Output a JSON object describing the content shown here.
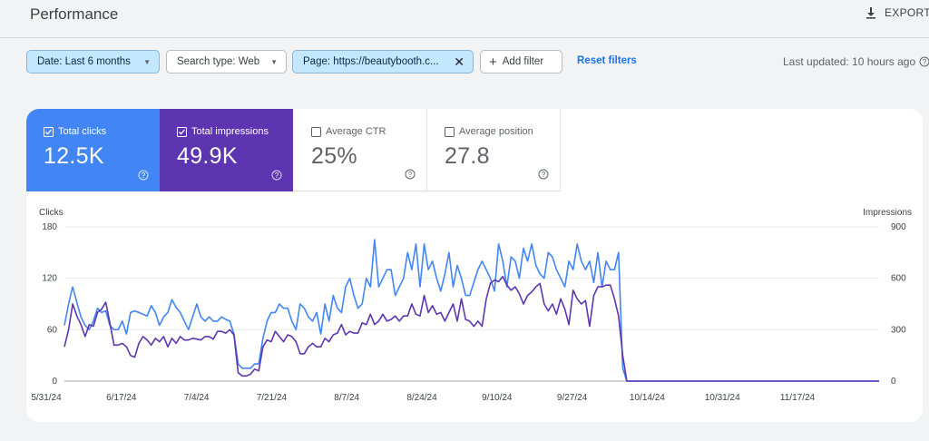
{
  "header": {
    "title": "Performance",
    "export_label": "EXPORT"
  },
  "filters": {
    "date": "Date: Last 6 months",
    "search_type": "Search type: Web",
    "page": "Page: https://beautybooth.c...",
    "add_filter": "Add filter",
    "reset": "Reset filters",
    "last_updated": "Last updated: 10 hours ago"
  },
  "metrics": [
    {
      "label": "Total clicks",
      "value": "12.5K",
      "checked": true,
      "color": "#4285f4"
    },
    {
      "label": "Total impressions",
      "value": "49.9K",
      "checked": true,
      "color": "#5e35b1"
    },
    {
      "label": "Average CTR",
      "value": "25%",
      "checked": false
    },
    {
      "label": "Average position",
      "value": "27.8",
      "checked": false
    }
  ],
  "chart_data": {
    "type": "line",
    "left_axis_label": "Clicks",
    "right_axis_label": "Impressions",
    "left_ylim": [
      0,
      180
    ],
    "right_ylim": [
      0,
      900
    ],
    "left_ticks": [
      "0",
      "60",
      "120",
      "180"
    ],
    "right_ticks": [
      "0",
      "300",
      "600",
      "900"
    ],
    "x_labels": [
      "5/31/24",
      "6/17/24",
      "7/4/24",
      "7/21/24",
      "8/7/24",
      "8/24/24",
      "9/10/24",
      "9/27/24",
      "10/14/24",
      "10/31/24",
      "11/17/24"
    ],
    "series": [
      {
        "name": "Clicks",
        "color": "#4285f4",
        "axis": "left",
        "values": [
          65,
          90,
          110,
          92,
          75,
          65,
          60,
          70,
          85,
          80,
          82,
          65,
          60,
          60,
          70,
          55,
          80,
          82,
          80,
          78,
          76,
          88,
          80,
          65,
          75,
          80,
          95,
          86,
          80,
          70,
          60,
          75,
          90,
          75,
          70,
          75,
          70,
          70,
          75,
          72,
          70,
          55,
          20,
          15,
          15,
          15,
          20,
          20,
          50,
          70,
          80,
          80,
          90,
          85,
          85,
          70,
          60,
          90,
          85,
          75,
          70,
          80,
          55,
          90,
          70,
          100,
          85,
          80,
          110,
          120,
          100,
          85,
          90,
          120,
          110,
          165,
          110,
          120,
          130,
          130,
          100,
          110,
          120,
          150,
          130,
          160,
          110,
          160,
          130,
          140,
          120,
          105,
          125,
          150,
          110,
          135,
          120,
          100,
          100,
          115,
          130,
          140,
          130,
          120,
          105,
          160,
          140,
          110,
          145,
          140,
          120,
          155,
          140,
          160,
          135,
          125,
          120,
          150,
          145,
          130,
          120,
          110,
          140,
          130,
          160,
          140,
          130,
          140,
          115,
          150,
          110,
          140,
          130,
          130,
          150,
          15,
          0,
          0,
          0,
          0,
          0,
          0,
          0,
          0,
          0,
          0,
          0,
          0,
          0,
          0,
          0,
          0,
          0,
          0,
          0,
          0,
          0,
          0,
          0,
          0,
          0,
          0,
          0,
          0,
          0,
          0,
          0,
          0,
          0,
          0,
          0,
          0,
          0,
          0,
          0,
          0,
          0,
          0,
          0,
          0,
          0,
          0,
          0,
          0,
          0,
          0,
          0,
          0,
          0,
          0,
          0,
          0,
          0,
          0,
          0,
          0,
          0,
          0
        ]
      },
      {
        "name": "Impressions",
        "color": "#5e35b1",
        "axis": "right",
        "values": [
          200,
          300,
          450,
          380,
          330,
          260,
          330,
          320,
          400,
          420,
          460,
          340,
          210,
          210,
          220,
          200,
          150,
          140,
          220,
          260,
          240,
          210,
          250,
          230,
          260,
          200,
          250,
          220,
          260,
          240,
          240,
          250,
          245,
          240,
          260,
          260,
          245,
          290,
          290,
          280,
          300,
          270,
          50,
          30,
          30,
          40,
          70,
          60,
          200,
          240,
          230,
          290,
          260,
          230,
          270,
          260,
          230,
          160,
          160,
          200,
          220,
          200,
          200,
          250,
          230,
          270,
          280,
          330,
          270,
          290,
          280,
          280,
          340,
          330,
          390,
          330,
          350,
          390,
          350,
          360,
          380,
          350,
          380,
          380,
          450,
          390,
          380,
          500,
          400,
          440,
          390,
          400,
          350,
          400,
          450,
          350,
          480,
          360,
          350,
          320,
          350,
          320,
          480,
          570,
          590,
          580,
          610,
          560,
          530,
          550,
          510,
          450,
          500,
          520,
          550,
          570,
          450,
          410,
          450,
          390,
          480,
          420,
          330,
          530,
          480,
          450,
          470,
          320,
          500,
          550,
          550,
          560,
          560,
          480,
          380,
          150,
          0,
          0,
          0,
          0,
          0,
          0,
          0,
          0,
          0,
          0,
          0,
          0,
          0,
          0,
          0,
          0,
          0,
          0,
          0,
          0,
          0,
          0,
          0,
          0,
          0,
          0,
          0,
          0,
          0,
          0,
          0,
          0,
          0,
          0,
          0,
          0,
          0,
          0,
          0,
          0,
          0,
          0,
          0,
          0,
          0,
          0,
          0,
          0,
          0,
          0,
          0,
          0,
          0,
          0,
          0,
          0,
          0,
          0,
          0,
          0,
          0,
          0
        ]
      }
    ]
  }
}
